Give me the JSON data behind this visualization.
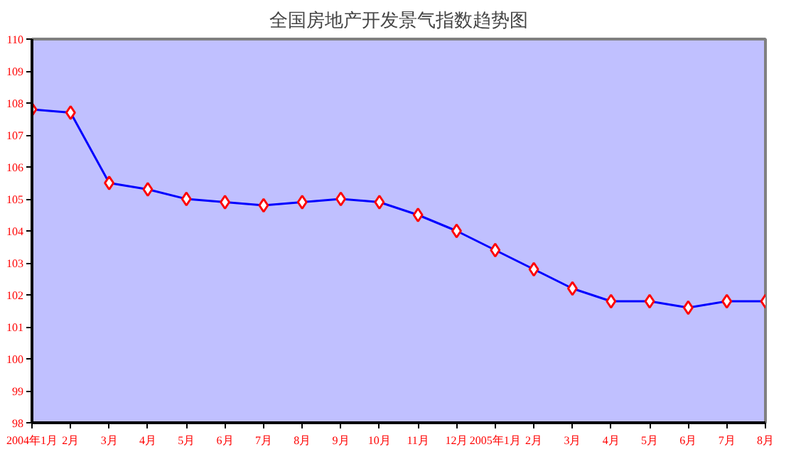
{
  "chart_data": {
    "type": "line",
    "title": "全国房地产开发景气指数趋势图",
    "categories": [
      "2004年1月",
      "2月",
      "3月",
      "4月",
      "5月",
      "6月",
      "7月",
      "8月",
      "9月",
      "10月",
      "11月",
      "12月",
      "2005年1月",
      "2月",
      "3月",
      "4月",
      "5月",
      "6月",
      "7月",
      "8月"
    ],
    "series": [
      {
        "color": "#0000ff",
        "values": [
          107.8,
          107.7,
          105.5,
          105.3,
          105.0,
          104.9,
          104.8,
          104.9,
          105.0,
          104.9,
          104.5,
          104.0,
          103.4,
          102.8,
          102.2,
          101.8,
          101.8,
          101.6,
          101.8,
          101.8
        ]
      }
    ],
    "ylim": [
      98,
      110
    ],
    "yticks": [
      98,
      99,
      100,
      101,
      102,
      103,
      104,
      105,
      106,
      107,
      108,
      109,
      110
    ],
    "marker": "diamond",
    "grid": false
  }
}
